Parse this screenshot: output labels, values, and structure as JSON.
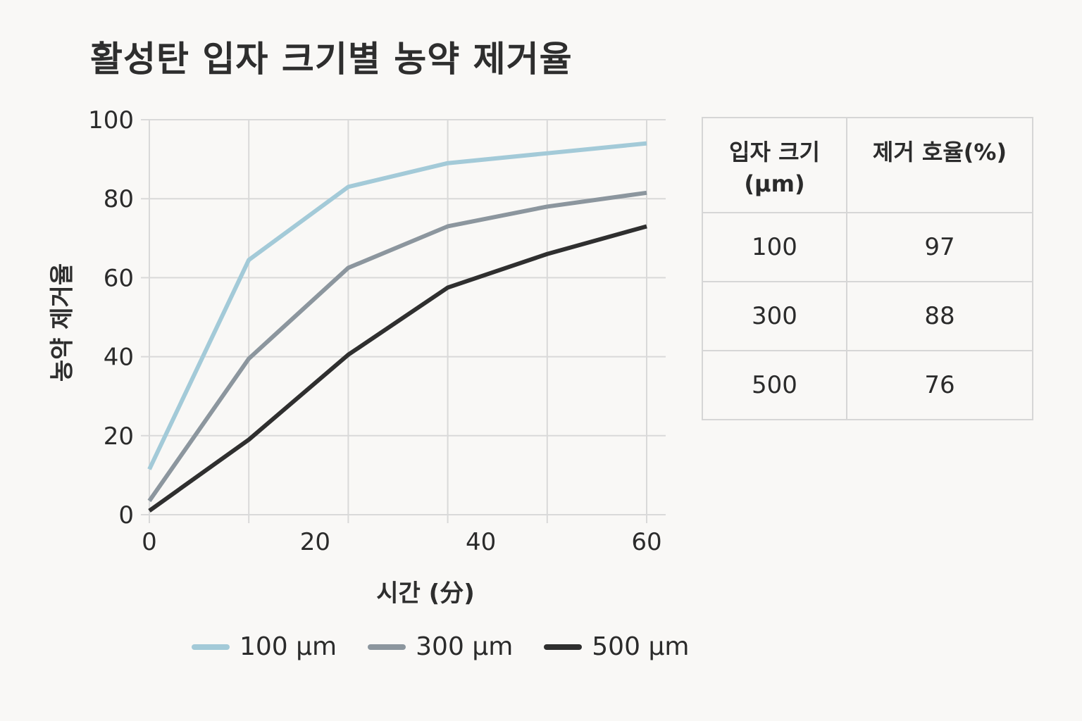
{
  "chart_data": {
    "type": "line",
    "title": "활성탄 입자 크기별 농약 제거율",
    "xlabel": "시간 (分)",
    "ylabel": "농약 제거율",
    "xlim": [
      0,
      60
    ],
    "ylim": [
      0,
      100
    ],
    "xticks": [
      0,
      20,
      40,
      60
    ],
    "yticks": [
      0,
      20,
      40,
      60,
      80,
      100
    ],
    "x_gridlines": [
      0,
      12,
      24,
      36,
      48,
      60
    ],
    "grid": true,
    "legend_position": "bottom",
    "x": [
      0,
      12,
      24,
      36,
      48,
      60
    ],
    "series": [
      {
        "name": "100 μm",
        "color": "#a3cad8",
        "values": [
          11.5,
          64.5,
          83,
          89,
          91.5,
          94
        ]
      },
      {
        "name": "300 μm",
        "color": "#8c969e",
        "values": [
          3.5,
          39.5,
          62.5,
          73,
          78,
          81.5
        ]
      },
      {
        "name": "500 μm",
        "color": "#2f2f2f",
        "values": [
          1,
          19,
          40.5,
          57.5,
          66,
          73
        ]
      }
    ]
  },
  "table": {
    "headers": [
      "입자 크기\n(μm)",
      "제거 호율(%)"
    ],
    "rows": [
      [
        "100",
        "97"
      ],
      [
        "300",
        "88"
      ],
      [
        "500",
        "76"
      ]
    ]
  },
  "colors": {
    "background": "#f9f8f6",
    "grid": "#d9d9d9",
    "text": "#2b2b2b"
  }
}
